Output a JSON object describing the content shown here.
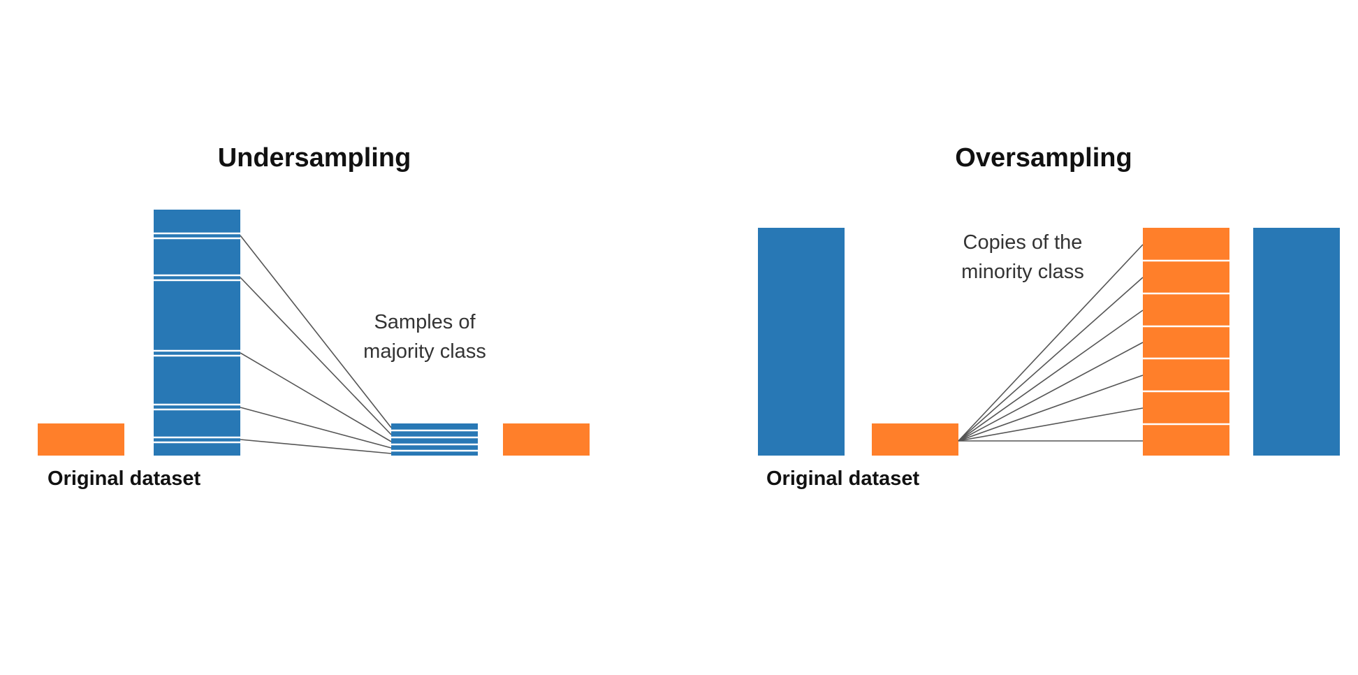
{
  "colors": {
    "majority": "#2878b5",
    "minority": "#ff7f2a",
    "line": "#555555",
    "divider": "#ffffff"
  },
  "undersampling": {
    "title": "Undersampling",
    "original_label": "Original dataset",
    "note_line1": "Samples of",
    "note_line2": "majority class"
  },
  "oversampling": {
    "title": "Oversampling",
    "original_label": "Original dataset",
    "note_line1": "Copies of the",
    "note_line2": "minority class"
  }
}
